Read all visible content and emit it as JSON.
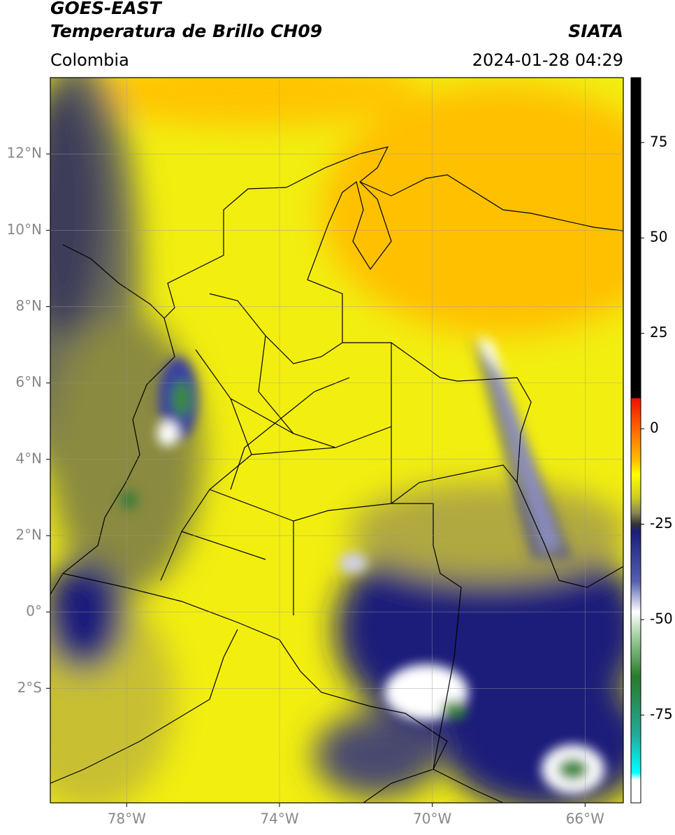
{
  "header": {
    "title": "GOES-EAST",
    "subtitle": "Temperatura de Brillo CH09",
    "source": "SIATA",
    "region": "Colombia",
    "datetime": "2024-01-28 04:29"
  },
  "map": {
    "xlim": [
      -80,
      -65
    ],
    "ylim": [
      -5,
      14
    ],
    "xticks": [
      {
        "value": -78,
        "label": "78°W"
      },
      {
        "value": -74,
        "label": "74°W"
      },
      {
        "value": -70,
        "label": "70°W"
      },
      {
        "value": -66,
        "label": "66°W"
      }
    ],
    "yticks": [
      {
        "value": 12,
        "label": "12°N"
      },
      {
        "value": 10,
        "label": "10°N"
      },
      {
        "value": 8,
        "label": "8°N"
      },
      {
        "value": 6,
        "label": "6°N"
      },
      {
        "value": 4,
        "label": "4°N"
      },
      {
        "value": 2,
        "label": "2°N"
      },
      {
        "value": 0,
        "label": "0°"
      },
      {
        "value": -2,
        "label": "2°S"
      }
    ],
    "grid": true
  },
  "colorbar": {
    "lim": [
      -98,
      92
    ],
    "ticks": [
      75,
      50,
      25,
      0,
      -25,
      -50,
      -75
    ],
    "stops": [
      {
        "value": 92,
        "color": "#000000"
      },
      {
        "value": 8,
        "color": "#000000"
      },
      {
        "value": 8,
        "color": "#ee1100"
      },
      {
        "value": 0,
        "color": "#ff6600"
      },
      {
        "value": -8,
        "color": "#ffbb00"
      },
      {
        "value": -12,
        "color": "#ffff00"
      },
      {
        "value": -18,
        "color": "#cccc22"
      },
      {
        "value": -22,
        "color": "#888855"
      },
      {
        "value": -25,
        "color": "#333333"
      },
      {
        "value": -27,
        "color": "#1a1f7a"
      },
      {
        "value": -40,
        "color": "#5560b0"
      },
      {
        "value": -48,
        "color": "#ffffff"
      },
      {
        "value": -55,
        "color": "#99cc99"
      },
      {
        "value": -65,
        "color": "#2a7a2a"
      },
      {
        "value": -80,
        "color": "#22aa99"
      },
      {
        "value": -90,
        "color": "#00ffff"
      },
      {
        "value": -92,
        "color": "#ffffff"
      },
      {
        "value": -98,
        "color": "#ffffff"
      }
    ]
  }
}
